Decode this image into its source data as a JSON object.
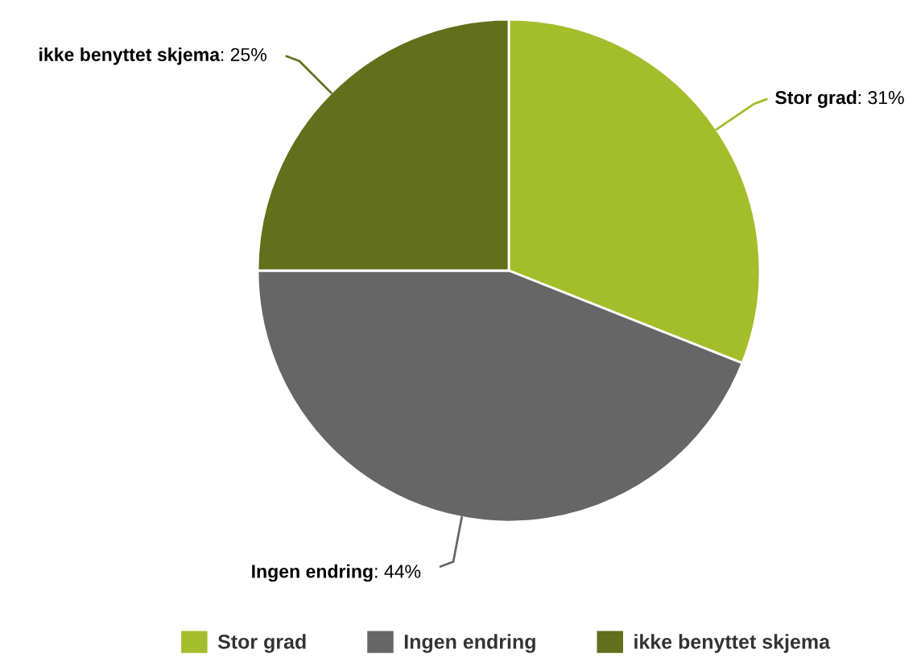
{
  "chart_data": {
    "type": "pie",
    "categories": [
      "Stor grad",
      "Ingen endring",
      "ikke benyttet skjema"
    ],
    "values": [
      31,
      44,
      25
    ],
    "colors": [
      "#a4bd2b",
      "#666666",
      "#626f1b"
    ],
    "value_labels": [
      ": 31%",
      ": 44%",
      ": 25%"
    ],
    "legend": "bottom"
  }
}
